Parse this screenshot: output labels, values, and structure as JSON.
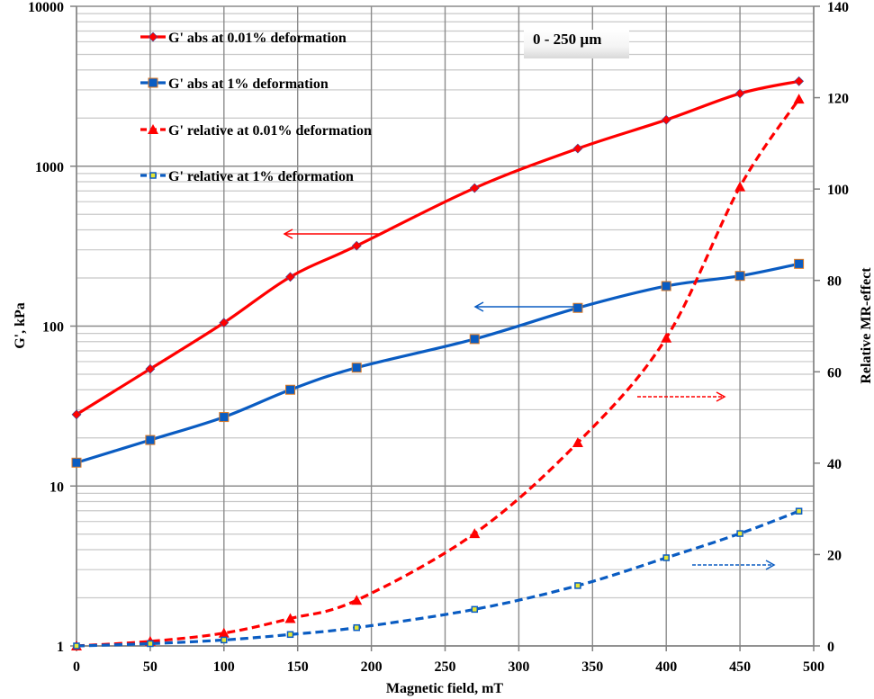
{
  "chart_data": {
    "type": "line",
    "title": "",
    "annotation": "0 - 250 µm",
    "xlabel": "Magnetic field,   mT",
    "ylabel": "G',  kPa",
    "y2label": "Relative MR-effect",
    "xlim": [
      0,
      500
    ],
    "ylim": [
      1,
      10000
    ],
    "yscale": "log",
    "y2lim": [
      0,
      140
    ],
    "x_ticks": [
      0,
      50,
      100,
      150,
      200,
      250,
      300,
      350,
      400,
      450,
      500
    ],
    "y_ticks": [
      1,
      10,
      100,
      1000,
      10000
    ],
    "y2_ticks": [
      0,
      20,
      40,
      60,
      80,
      100,
      120,
      140
    ],
    "grid": true,
    "legend_position": "upper-left",
    "x": [
      0,
      50,
      100,
      145,
      190,
      270,
      340,
      400,
      450,
      490
    ],
    "series": [
      {
        "name": "G' abs at 0.01% deformation",
        "axis": "left",
        "color": "#ff0000",
        "style": "solid",
        "marker": "diamond",
        "values": [
          28,
          54,
          105,
          203,
          318,
          730,
          1290,
          1950,
          2850,
          3400
        ]
      },
      {
        "name": "G' abs at 1% deformation",
        "axis": "left",
        "color": "#0a5cc2",
        "style": "solid",
        "marker": "square",
        "values": [
          14,
          19.4,
          27,
          40,
          55,
          83,
          130,
          178,
          206,
          245
        ]
      },
      {
        "name": "G' relative at 0.01% deformation",
        "axis": "right",
        "color": "#ff0000",
        "style": "dashed",
        "marker": "triangle",
        "values": [
          0,
          1,
          2.8,
          6,
          10,
          24.6,
          44.5,
          67.4,
          100.5,
          119.7
        ]
      },
      {
        "name": "G' relative at 1% deformation",
        "axis": "right",
        "color": "#0a5cc2",
        "style": "dashed",
        "marker": "small-square",
        "values": [
          0,
          0.5,
          1.3,
          2.5,
          4,
          8,
          13.2,
          19.3,
          24.6,
          29.5
        ]
      }
    ],
    "arrows": [
      {
        "series": "G' abs at 0.01% deformation",
        "direction": "left",
        "color": "#ff0000"
      },
      {
        "series": "G' abs at 1% deformation",
        "direction": "left",
        "color": "#0a5cc2"
      },
      {
        "series": "G' relative at 0.01% deformation",
        "direction": "right",
        "color": "#ff0000"
      },
      {
        "series": "G' relative at 1% deformation",
        "direction": "right",
        "color": "#0a5cc2"
      }
    ]
  }
}
